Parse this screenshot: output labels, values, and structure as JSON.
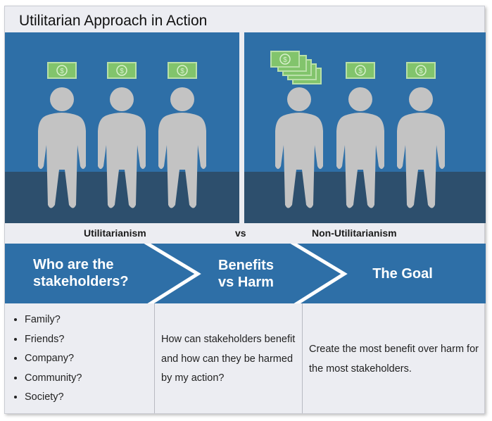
{
  "title": "Utilitarian Approach in Action",
  "labels": {
    "left": "Utilitarianism",
    "vs": "vs",
    "right": "Non-Utilitarianism"
  },
  "steps": [
    {
      "line1": "Who are the",
      "line2": "stakeholders?"
    },
    {
      "line1": "Benefits",
      "line2": "vs Harm"
    },
    {
      "line1": "The Goal"
    }
  ],
  "stakeholders": [
    "Family?",
    "Friends?",
    "Company?",
    "Community?",
    "Society?"
  ],
  "benefits_text": "How can stakeholders benefit and how can they be harmed by my action?",
  "goal_text": "Create the most benefit over harm for the most stakeholders.",
  "colors": {
    "panel": "#2e6fa7",
    "floor": "#2d4f6d",
    "person": "#c3c3c3",
    "money": "#82c46c",
    "chevron": "#2e6fa7"
  },
  "icons": [
    "person-icon",
    "money-bill-icon",
    "money-stack-icon"
  ]
}
